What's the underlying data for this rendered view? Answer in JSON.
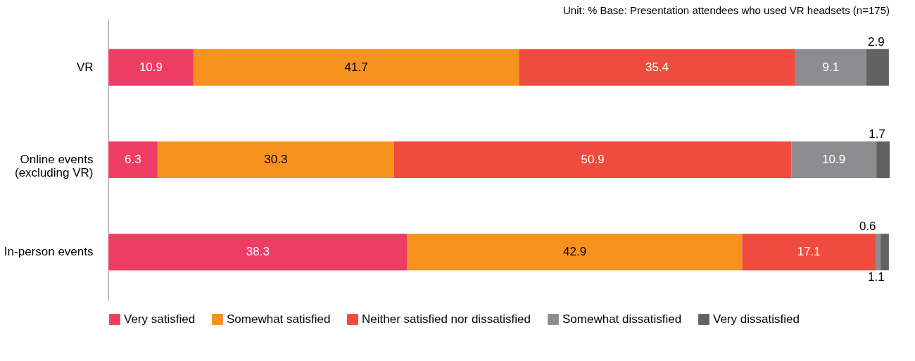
{
  "chart_data": {
    "type": "bar",
    "orientation": "horizontal",
    "stacked": true,
    "data_labels": true,
    "legend": "bottom",
    "tick_labels": "y",
    "grid": false,
    "annotations": [
      "Unit: % Base: Presentation attendees who used VR headsets (n=175)"
    ],
    "categories": [
      "VR",
      "Online events\n(excluding VR)",
      "In-person events"
    ],
    "series": [
      {
        "name": "Very satisfied",
        "color": "#ee3d64",
        "values": [
          10.9,
          6.3,
          38.3
        ]
      },
      {
        "name": "Somewhat satisfied",
        "color": "#f7921e",
        "values": [
          41.7,
          30.3,
          42.9
        ]
      },
      {
        "name": "Neither satisfied nor dissatisfied",
        "color": "#ef4b3f",
        "values": [
          35.4,
          50.9,
          17.1
        ]
      },
      {
        "name": "Somewhat dissatisfied",
        "color": "#8d8d8f",
        "values": [
          9.1,
          10.9,
          0.6
        ]
      },
      {
        "name": "Very dissatisfied",
        "color": "#626262",
        "values": [
          2.9,
          1.7,
          1.1
        ]
      }
    ]
  }
}
